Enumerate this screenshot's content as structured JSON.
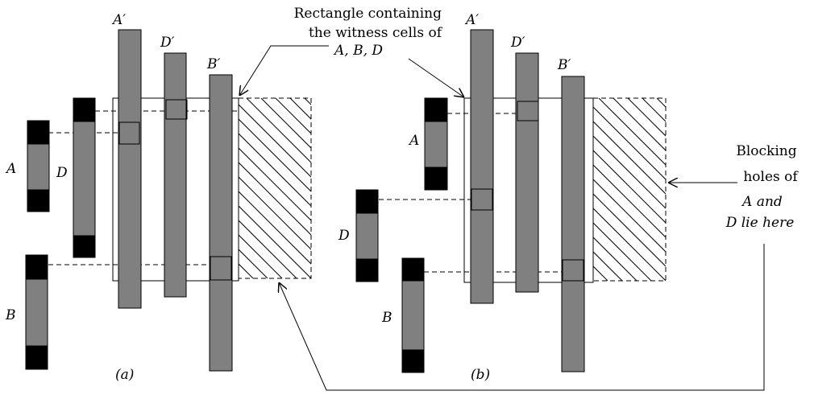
{
  "labels": {
    "A": "A",
    "B": "B",
    "D": "D",
    "A_prime": "A′",
    "B_prime": "B′",
    "D_prime": "D′"
  },
  "captions": {
    "panel_a": "(a)",
    "panel_b": "(b)"
  },
  "annotations": {
    "rectangle_line1": "Rectangle containing",
    "rectangle_line2": "the witness cells of",
    "rectangle_line3": "A, B, D",
    "blocking_line1": "Blocking",
    "blocking_line2": "holes of",
    "blocking_line3": "A and",
    "blocking_line4": "D lie here"
  }
}
